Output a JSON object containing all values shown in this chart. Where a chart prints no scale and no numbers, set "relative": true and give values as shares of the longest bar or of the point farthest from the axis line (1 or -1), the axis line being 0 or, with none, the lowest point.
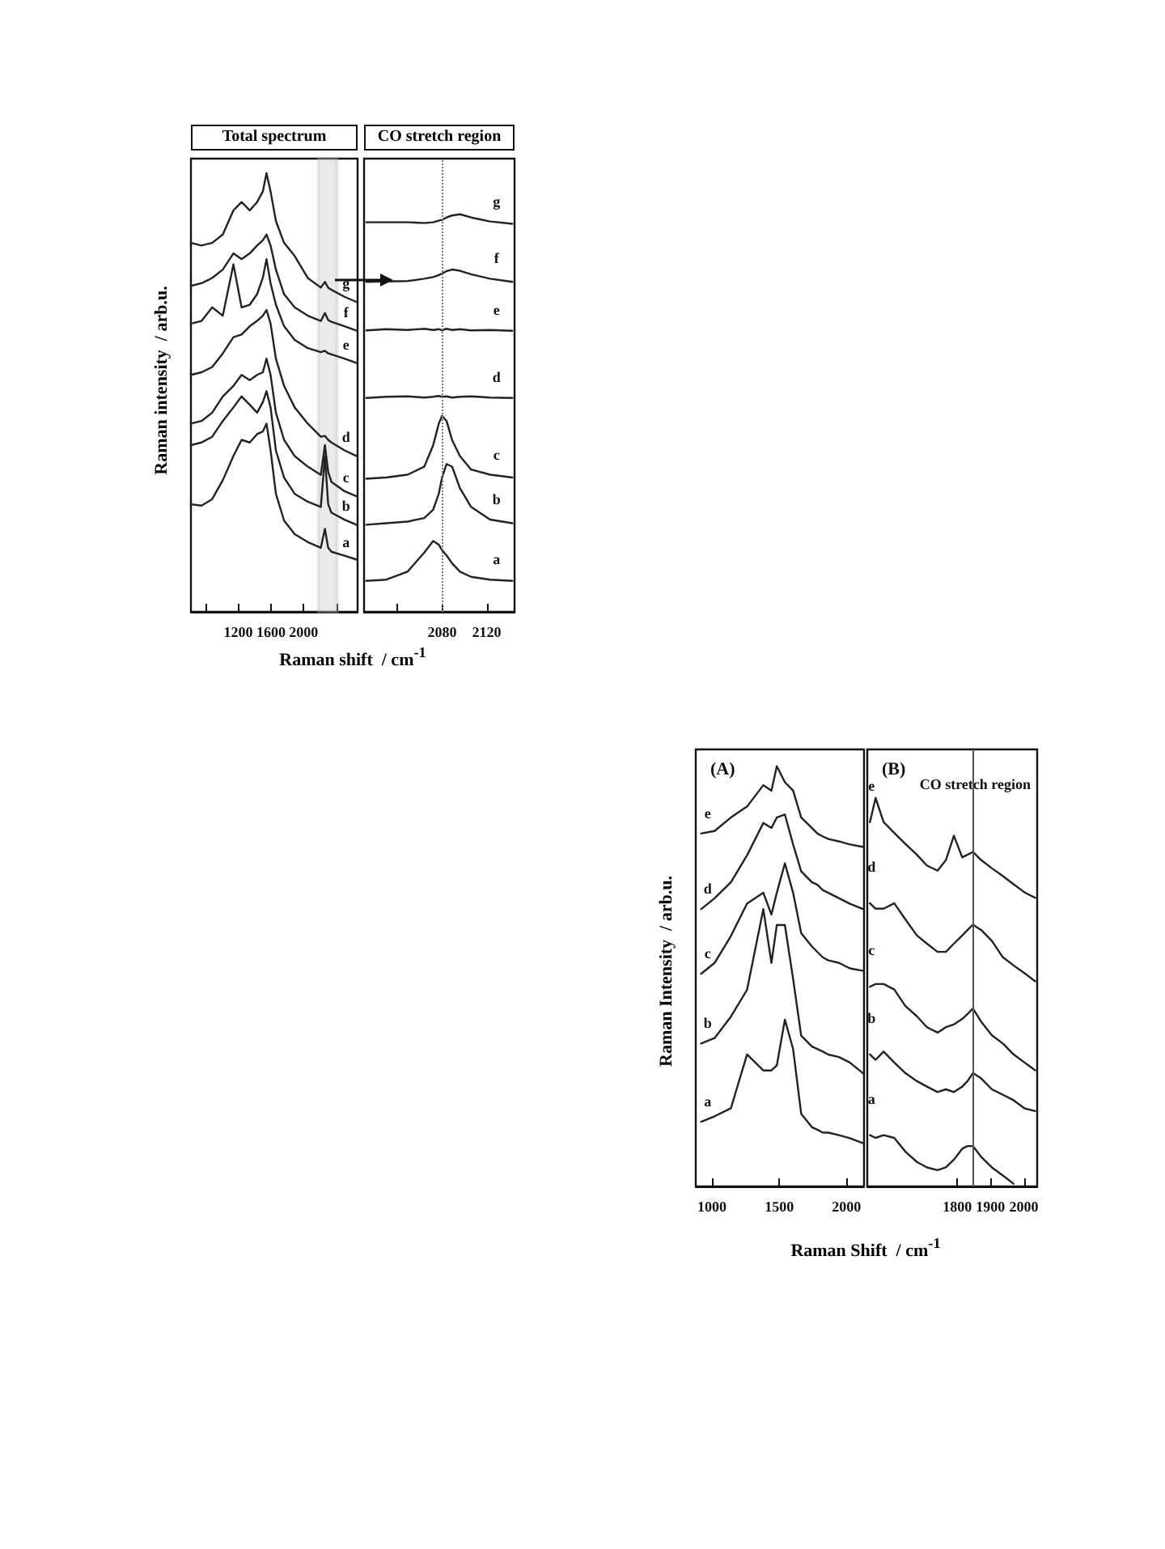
{
  "chart_data": [
    {
      "type": "line",
      "title": "Total spectrum",
      "ylabel": "Raman intensity  / arb.u.",
      "relative": true,
      "marker": "none",
      "grid": false,
      "xlim": [
        620,
        2660
      ],
      "xticks": [
        {
          "value": 800,
          "label": null
        },
        1200,
        1600,
        2000,
        {
          "value": 2400,
          "label": null
        }
      ],
      "x": [
        620,
        750,
        880,
        1010,
        1140,
        1240,
        1340,
        1430,
        1500,
        1545,
        1595,
        1660,
        1760,
        1890,
        2050,
        2210,
        2260,
        2300,
        2340,
        2500,
        2650
      ],
      "bands": [
        {
          "axis": "x",
          "from": 2180,
          "to": 2410,
          "color": "#bbbbbb"
        }
      ],
      "series": [
        {
          "name": "g",
          "color": "#222222",
          "values": [
            0.841,
            0.835,
            0.841,
            0.86,
            0.915,
            0.934,
            0.915,
            0.934,
            0.958,
            1,
            0.958,
            0.891,
            0.841,
            0.811,
            0.761,
            0.739,
            0.752,
            0.739,
            0.734,
            0.718,
            0.706
          ]
        },
        {
          "name": "f",
          "color": "#222222",
          "values": [
            0.743,
            0.749,
            0.761,
            0.78,
            0.817,
            0.804,
            0.817,
            0.835,
            0.847,
            0.86,
            0.835,
            0.78,
            0.724,
            0.694,
            0.675,
            0.663,
            0.681,
            0.665,
            0.661,
            0.651,
            0.641
          ]
        },
        {
          "name": "e",
          "color": "#222222",
          "values": [
            0.657,
            0.663,
            0.694,
            0.675,
            0.792,
            0.694,
            0.7,
            0.724,
            0.761,
            0.804,
            0.749,
            0.7,
            0.651,
            0.62,
            0.601,
            0.592,
            0.595,
            0.589,
            0.587,
            0.577,
            0.567
          ]
        },
        {
          "name": "d",
          "color": "#222222",
          "values": [
            0.54,
            0.546,
            0.558,
            0.589,
            0.626,
            0.632,
            0.651,
            0.663,
            0.675,
            0.688,
            0.657,
            0.577,
            0.515,
            0.466,
            0.429,
            0.399,
            0.401,
            0.392,
            0.386,
            0.368,
            0.355
          ]
        },
        {
          "name": "c",
          "color": "#222222",
          "values": [
            0.429,
            0.435,
            0.454,
            0.491,
            0.515,
            0.54,
            0.528,
            0.54,
            0.546,
            0.577,
            0.54,
            0.454,
            0.392,
            0.355,
            0.331,
            0.312,
            0.38,
            0.319,
            0.296,
            0.275,
            0.263
          ]
        },
        {
          "name": "b",
          "color": "#222222",
          "values": [
            0.38,
            0.386,
            0.399,
            0.435,
            0.466,
            0.491,
            0.472,
            0.454,
            0.478,
            0.503,
            0.466,
            0.368,
            0.306,
            0.269,
            0.251,
            0.239,
            0.355,
            0.245,
            0.226,
            0.21,
            0.198
          ]
        },
        {
          "name": "a",
          "color": "#222222",
          "values": [
            0.245,
            0.242,
            0.257,
            0.3,
            0.355,
            0.392,
            0.386,
            0.405,
            0.411,
            0.429,
            0.368,
            0.269,
            0.208,
            0.177,
            0.159,
            0.146,
            0.189,
            0.146,
            0.137,
            0.128,
            0.119
          ]
        }
      ]
    },
    {
      "type": "line",
      "title": "CO stretch region",
      "xlabel": "Raman shift  / cm$^{-1}$",
      "relative": true,
      "marker": "none",
      "grid": false,
      "xlim": [
        2010,
        2145
      ],
      "xticks": [
        {
          "value": 2040,
          "label": null
        },
        2080,
        2120
      ],
      "x": [
        2012,
        2030,
        2049,
        2064,
        2072,
        2077,
        2080,
        2084,
        2089,
        2096,
        2106,
        2123,
        2143
      ],
      "ref_lines": [
        {
          "axis": "x",
          "value": 2080,
          "line_style": "dotted",
          "color": "#777777"
        }
      ],
      "series": [
        {
          "name": "g",
          "color": "#222222",
          "values": [
            0.98,
            0.98,
            0.98,
            0.978,
            0.98,
            0.984,
            0.986,
            0.992,
            0.997,
            1,
            0.992,
            0.982,
            0.976
          ]
        },
        {
          "name": "f",
          "color": "#222222",
          "values": [
            0.83,
            0.831,
            0.832,
            0.838,
            0.842,
            0.847,
            0.851,
            0.857,
            0.861,
            0.858,
            0.849,
            0.838,
            0.83
          ]
        },
        {
          "name": "e",
          "color": "#222222",
          "values": [
            0.708,
            0.711,
            0.709,
            0.712,
            0.709,
            0.711,
            0.708,
            0.712,
            0.709,
            0.711,
            0.708,
            0.709,
            0.707
          ]
        },
        {
          "name": "d",
          "color": "#222222",
          "values": [
            0.538,
            0.541,
            0.542,
            0.539,
            0.541,
            0.543,
            0.541,
            0.542,
            0.539,
            0.541,
            0.542,
            0.539,
            0.538
          ]
        },
        {
          "name": "c",
          "color": "#222222",
          "values": [
            0.335,
            0.338,
            0.345,
            0.365,
            0.419,
            0.473,
            0.493,
            0.48,
            0.432,
            0.392,
            0.358,
            0.345,
            0.338
          ]
        },
        {
          "name": "b",
          "color": "#222222",
          "values": [
            0.219,
            0.223,
            0.227,
            0.236,
            0.257,
            0.297,
            0.338,
            0.372,
            0.365,
            0.311,
            0.264,
            0.232,
            0.223
          ]
        },
        {
          "name": "a",
          "color": "#222222",
          "values": [
            0.078,
            0.081,
            0.101,
            0.149,
            0.178,
            0.169,
            0.155,
            0.142,
            0.122,
            0.101,
            0.088,
            0.081,
            0.078
          ]
        }
      ]
    },
    {
      "type": "line",
      "title": "(A)",
      "ylabel": "Raman Intensity  / arb.u.",
      "relative": true,
      "marker": "none",
      "grid": false,
      "xlim": [
        880,
        2130
      ],
      "xticks": [
        1000,
        1500,
        2000
      ],
      "x": [
        920,
        1020,
        1141,
        1261,
        1382,
        1442,
        1482,
        1542,
        1603,
        1663,
        1743,
        1783,
        1824,
        1864,
        1944,
        2024,
        2124
      ],
      "series": [
        {
          "name": "e",
          "color": "#222222",
          "values": [
            0.84,
            0.846,
            0.878,
            0.904,
            0.955,
            0.942,
            1,
            0.962,
            0.942,
            0.878,
            0.853,
            0.84,
            0.833,
            0.827,
            0.821,
            0.814,
            0.808
          ]
        },
        {
          "name": "d",
          "color": "#222222",
          "values": [
            0.66,
            0.686,
            0.724,
            0.788,
            0.865,
            0.853,
            0.878,
            0.885,
            0.814,
            0.75,
            0.724,
            0.718,
            0.705,
            0.699,
            0.686,
            0.673,
            0.66
          ]
        },
        {
          "name": "c",
          "color": "#222222",
          "values": [
            0.506,
            0.532,
            0.596,
            0.673,
            0.699,
            0.647,
            0.699,
            0.769,
            0.699,
            0.603,
            0.571,
            0.558,
            0.545,
            0.538,
            0.532,
            0.519,
            0.513
          ]
        },
        {
          "name": "b",
          "color": "#222222",
          "values": [
            0.34,
            0.353,
            0.404,
            0.468,
            0.66,
            0.532,
            0.622,
            0.622,
            0.494,
            0.359,
            0.333,
            0.327,
            0.321,
            0.314,
            0.308,
            0.295,
            0.269
          ]
        },
        {
          "name": "a",
          "color": "#222222",
          "values": [
            0.154,
            0.167,
            0.186,
            0.314,
            0.276,
            0.276,
            0.288,
            0.397,
            0.327,
            0.173,
            0.141,
            0.135,
            0.128,
            0.128,
            0.122,
            0.115,
            0.103
          ]
        }
      ]
    },
    {
      "type": "line",
      "title": "(B)",
      "subtitle": "CO stretch region",
      "xlabel": "Raman Shift  / cm$^{-1}$",
      "relative": true,
      "marker": "none",
      "grid": false,
      "xlim": [
        1530,
        2040
      ],
      "xticks": [
        1800,
        1900,
        2000
      ],
      "x": [
        1538,
        1555,
        1579,
        1611,
        1644,
        1679,
        1709,
        1741,
        1766,
        1790,
        1815,
        1831,
        1847,
        1872,
        1904,
        1937,
        1969,
        2002,
        2034
      ],
      "ref_lines": [
        {
          "axis": "x",
          "value": 1847,
          "line_style": "solid",
          "color": "#555555"
        }
      ],
      "series": [
        {
          "name": "e",
          "color": "#222222",
          "values": [
            0.938,
            1,
            0.938,
            0.91,
            0.882,
            0.854,
            0.826,
            0.813,
            0.84,
            0.903,
            0.847,
            0.854,
            0.861,
            0.84,
            0.819,
            0.799,
            0.778,
            0.757,
            0.743
          ]
        },
        {
          "name": "d",
          "color": "#222222",
          "values": [
            0.729,
            0.715,
            0.715,
            0.729,
            0.688,
            0.646,
            0.625,
            0.604,
            0.604,
            0.625,
            0.646,
            0.66,
            0.674,
            0.66,
            0.632,
            0.59,
            0.569,
            0.549,
            0.528
          ]
        },
        {
          "name": "c",
          "color": "#222222",
          "values": [
            0.514,
            0.521,
            0.521,
            0.507,
            0.465,
            0.438,
            0.41,
            0.396,
            0.41,
            0.417,
            0.431,
            0.444,
            0.458,
            0.424,
            0.389,
            0.368,
            0.34,
            0.319,
            0.299
          ]
        },
        {
          "name": "b",
          "color": "#222222",
          "values": [
            0.34,
            0.326,
            0.347,
            0.319,
            0.292,
            0.271,
            0.257,
            0.243,
            0.25,
            0.243,
            0.257,
            0.271,
            0.292,
            0.278,
            0.25,
            0.236,
            0.222,
            0.201,
            0.194
          ]
        },
        {
          "name": "a",
          "color": "#222222",
          "values": [
            0.132,
            0.125,
            0.132,
            0.125,
            0.09,
            0.063,
            0.049,
            0.042,
            0.049,
            0.069,
            0.097,
            0.104,
            0.104,
            0.076,
            0.049,
            0.028,
            0.007,
            null,
            null
          ]
        }
      ]
    }
  ]
}
